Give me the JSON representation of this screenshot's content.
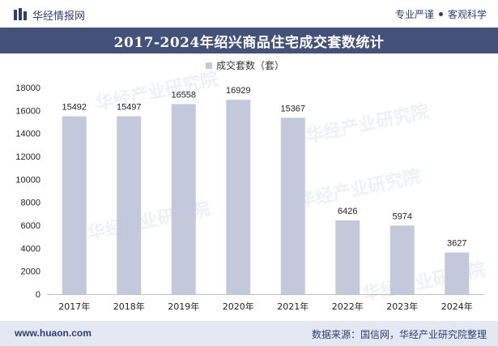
{
  "header": {
    "brand_name": "华经情报网",
    "slogan_left": "专业严谨",
    "slogan_right": "客观科学"
  },
  "title": "2017-2024年绍兴商品住宅成交套数统计",
  "footer": {
    "website": "www.huaon.com",
    "source": "数据来源：国信网，华经产业研究院整理"
  },
  "watermark": "华经产业研究院",
  "colors": {
    "bar": "#c3c9da",
    "title_bg": "#44527a",
    "footer_bg": "#e3e8f3",
    "text_dark": "#2f3f6e"
  },
  "chart_data": {
    "type": "bar",
    "categories": [
      "2017年",
      "2018年",
      "2019年",
      "2020年",
      "2021年",
      "2022年",
      "2023年",
      "2024年"
    ],
    "series": [
      {
        "name": "成交套数（套）",
        "values": [
          15492,
          15497,
          16558,
          16929,
          15367,
          6426,
          5974,
          3627
        ]
      }
    ],
    "y_ticks": [
      0,
      2000,
      4000,
      6000,
      8000,
      10000,
      12000,
      14000,
      16000,
      18000
    ],
    "ylim": [
      0,
      18000
    ],
    "legend_position": "top-center",
    "grid": false,
    "data_labels": true
  }
}
